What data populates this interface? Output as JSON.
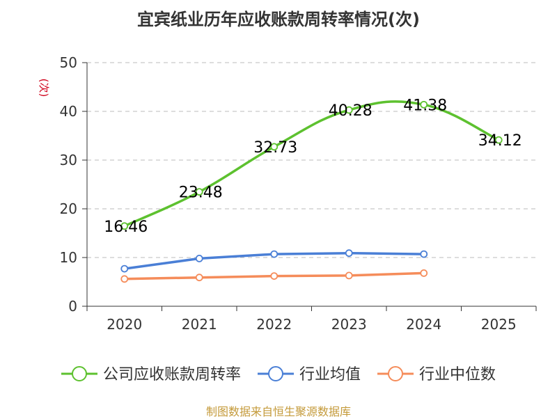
{
  "title": "宜宾纸业历年应收账款周转率情况(次)",
  "source": "制图数据来自恒生聚源数据库",
  "colors": {
    "company": "#5dc12f",
    "industry_avg": "#4a7fd6",
    "industry_median": "#f58c5a",
    "ylabel": "#d0021b",
    "source": "#c49a3a",
    "grid": "#bbbbbb",
    "axis": "#333333"
  },
  "chart_data": {
    "type": "line",
    "title": "宜宾纸业历年应收账款周转率情况(次)",
    "xlabel": "",
    "ylabel": "(次)",
    "ylim": [
      0,
      50
    ],
    "yticks": [
      0,
      10,
      20,
      30,
      40,
      50
    ],
    "categories": [
      "2020",
      "2021",
      "2022",
      "2023",
      "2024",
      "2025"
    ],
    "grid": true,
    "legend_position": "bottom",
    "series": [
      {
        "key": "company",
        "name": "公司应收账款周转率",
        "values": [
          16.46,
          23.48,
          32.73,
          40.28,
          41.38,
          34.12
        ],
        "labels": [
          "16.46",
          "23.48",
          "32.73",
          "40.28",
          "41.38",
          "34.12"
        ]
      },
      {
        "key": "industry_avg",
        "name": "行业均值",
        "values": [
          7.7,
          9.8,
          10.7,
          10.9,
          10.7,
          null
        ]
      },
      {
        "key": "industry_median",
        "name": "行业中位数",
        "values": [
          5.6,
          5.9,
          6.2,
          6.3,
          6.8,
          null
        ]
      }
    ]
  }
}
